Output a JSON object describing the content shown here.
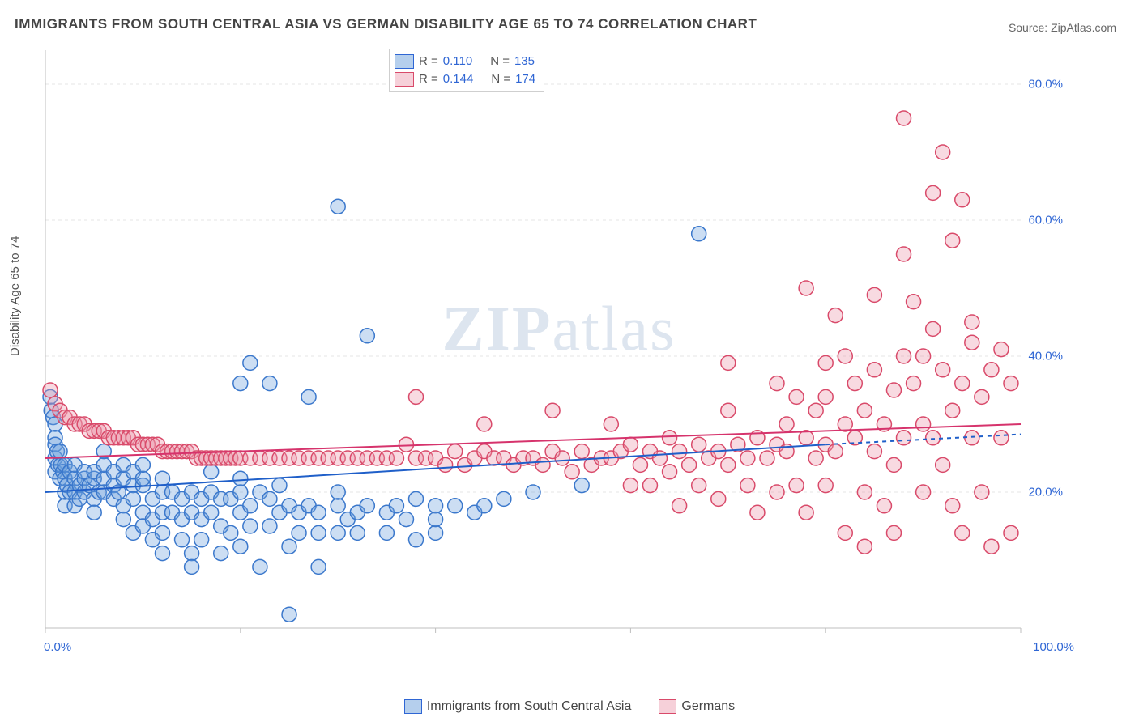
{
  "title": "IMMIGRANTS FROM SOUTH CENTRAL ASIA VS GERMAN DISABILITY AGE 65 TO 74 CORRELATION CHART",
  "source": "Source: ZipAtlas.com",
  "ylabel": "Disability Age 65 to 74",
  "watermark": {
    "bold": "ZIP",
    "rest": "atlas"
  },
  "chart": {
    "type": "scatter-with-trendlines",
    "xlim": [
      0,
      100
    ],
    "ylim": [
      0,
      85
    ],
    "yticks": [
      20,
      40,
      60,
      80
    ],
    "ytick_labels": [
      "20.0%",
      "40.0%",
      "60.0%",
      "80.0%"
    ],
    "x_bounds_labels": [
      "0.0%",
      "100.0%"
    ],
    "grid_color": "#e4e4e4",
    "axis_color": "#bfbfbf",
    "background_color": "#ffffff",
    "marker_radius": 9,
    "marker_stroke_width": 1.5,
    "series": [
      {
        "name": "Immigrants from South Central Asia",
        "short": "blue",
        "fill": "rgba(108,160,220,0.35)",
        "stroke": "#3b78cc",
        "r": "0.110",
        "n": "135",
        "trend": {
          "x1": 0,
          "y1": 20,
          "x2": 80,
          "y2": 27,
          "solid_to_x": 80,
          "dash_to_x": 100,
          "dash_y2": 28.5,
          "color": "#1f5fc9",
          "width": 2
        },
        "points": [
          [
            0.5,
            34
          ],
          [
            0.6,
            32
          ],
          [
            0.8,
            31
          ],
          [
            1,
            30
          ],
          [
            1,
            28
          ],
          [
            1,
            27
          ],
          [
            1,
            25
          ],
          [
            1,
            23
          ],
          [
            1.2,
            26
          ],
          [
            1.3,
            24
          ],
          [
            1.5,
            22
          ],
          [
            1.5,
            26
          ],
          [
            1.6,
            24
          ],
          [
            1.8,
            23
          ],
          [
            2,
            22
          ],
          [
            2,
            24
          ],
          [
            2,
            20
          ],
          [
            2,
            18
          ],
          [
            2.2,
            21
          ],
          [
            2.5,
            20
          ],
          [
            2.5,
            23
          ],
          [
            3,
            22
          ],
          [
            3,
            20
          ],
          [
            3,
            24
          ],
          [
            3,
            18
          ],
          [
            3.5,
            21
          ],
          [
            3.5,
            19
          ],
          [
            4,
            22
          ],
          [
            4,
            20
          ],
          [
            4,
            23
          ],
          [
            4.5,
            21
          ],
          [
            5,
            22
          ],
          [
            5,
            23
          ],
          [
            5,
            19
          ],
          [
            5,
            17
          ],
          [
            5.5,
            20
          ],
          [
            6,
            22
          ],
          [
            6,
            24
          ],
          [
            6,
            20
          ],
          [
            6,
            26
          ],
          [
            7,
            21
          ],
          [
            7,
            19
          ],
          [
            7,
            23
          ],
          [
            7.5,
            20
          ],
          [
            8,
            22
          ],
          [
            8,
            24
          ],
          [
            8,
            18
          ],
          [
            8,
            16
          ],
          [
            9,
            21
          ],
          [
            9,
            23
          ],
          [
            9,
            19
          ],
          [
            9,
            14
          ],
          [
            10,
            21
          ],
          [
            10,
            22
          ],
          [
            10,
            24
          ],
          [
            10,
            17
          ],
          [
            10,
            15
          ],
          [
            11,
            19
          ],
          [
            11,
            16
          ],
          [
            11,
            13
          ],
          [
            12,
            20
          ],
          [
            12,
            22
          ],
          [
            12,
            17
          ],
          [
            12,
            14
          ],
          [
            12,
            11
          ],
          [
            13,
            17
          ],
          [
            13,
            20
          ],
          [
            14,
            19
          ],
          [
            14,
            16
          ],
          [
            14,
            13
          ],
          [
            15,
            20
          ],
          [
            15,
            17
          ],
          [
            15,
            11
          ],
          [
            15,
            9
          ],
          [
            16,
            19
          ],
          [
            16,
            16
          ],
          [
            16,
            13
          ],
          [
            17,
            20
          ],
          [
            17,
            17
          ],
          [
            17,
            23
          ],
          [
            18,
            19
          ],
          [
            18,
            15
          ],
          [
            18,
            11
          ],
          [
            19,
            14
          ],
          [
            19,
            19
          ],
          [
            20,
            20
          ],
          [
            20,
            22
          ],
          [
            20,
            36
          ],
          [
            20,
            17
          ],
          [
            20,
            12
          ],
          [
            21,
            18
          ],
          [
            21,
            39
          ],
          [
            21,
            15
          ],
          [
            22,
            20
          ],
          [
            22,
            9
          ],
          [
            23,
            19
          ],
          [
            23,
            36
          ],
          [
            23,
            15
          ],
          [
            24,
            17
          ],
          [
            24,
            21
          ],
          [
            25,
            18
          ],
          [
            25,
            12
          ],
          [
            25,
            2
          ],
          [
            26,
            17
          ],
          [
            26,
            14
          ],
          [
            27,
            18
          ],
          [
            27,
            34
          ],
          [
            28,
            17
          ],
          [
            28,
            14
          ],
          [
            28,
            9
          ],
          [
            30,
            18
          ],
          [
            30,
            20
          ],
          [
            30,
            14
          ],
          [
            30,
            62
          ],
          [
            31,
            16
          ],
          [
            32,
            17
          ],
          [
            32,
            14
          ],
          [
            33,
            18
          ],
          [
            33,
            43
          ],
          [
            35,
            17
          ],
          [
            35,
            14
          ],
          [
            36,
            18
          ],
          [
            37,
            16
          ],
          [
            38,
            19
          ],
          [
            38,
            13
          ],
          [
            40,
            18
          ],
          [
            40,
            14
          ],
          [
            40,
            16
          ],
          [
            42,
            18
          ],
          [
            44,
            17
          ],
          [
            45,
            18
          ],
          [
            47,
            19
          ],
          [
            50,
            20
          ],
          [
            55,
            21
          ],
          [
            67,
            58
          ]
        ]
      },
      {
        "name": "Germans",
        "short": "pink",
        "fill": "rgba(236,150,170,0.35)",
        "stroke": "#d94a6a",
        "r": "0.144",
        "n": "174",
        "trend": {
          "x1": 0,
          "y1": 25,
          "x2": 100,
          "y2": 30,
          "solid_to_x": 100,
          "color": "#d6336c",
          "width": 2
        },
        "points": [
          [
            0.5,
            35
          ],
          [
            1,
            33
          ],
          [
            1.5,
            32
          ],
          [
            2,
            31
          ],
          [
            2.5,
            31
          ],
          [
            3,
            30
          ],
          [
            3.5,
            30
          ],
          [
            4,
            30
          ],
          [
            4.5,
            29
          ],
          [
            5,
            29
          ],
          [
            5.5,
            29
          ],
          [
            6,
            29
          ],
          [
            6.5,
            28
          ],
          [
            7,
            28
          ],
          [
            7.5,
            28
          ],
          [
            8,
            28
          ],
          [
            8.5,
            28
          ],
          [
            9,
            28
          ],
          [
            9.5,
            27
          ],
          [
            10,
            27
          ],
          [
            10.5,
            27
          ],
          [
            11,
            27
          ],
          [
            11.5,
            27
          ],
          [
            12,
            26
          ],
          [
            12.5,
            26
          ],
          [
            13,
            26
          ],
          [
            13.5,
            26
          ],
          [
            14,
            26
          ],
          [
            14.5,
            26
          ],
          [
            15,
            26
          ],
          [
            15.5,
            25
          ],
          [
            16,
            25
          ],
          [
            16.5,
            25
          ],
          [
            17,
            25
          ],
          [
            17.5,
            25
          ],
          [
            18,
            25
          ],
          [
            18.5,
            25
          ],
          [
            19,
            25
          ],
          [
            19.5,
            25
          ],
          [
            20,
            25
          ],
          [
            21,
            25
          ],
          [
            22,
            25
          ],
          [
            23,
            25
          ],
          [
            24,
            25
          ],
          [
            25,
            25
          ],
          [
            26,
            25
          ],
          [
            27,
            25
          ],
          [
            28,
            25
          ],
          [
            29,
            25
          ],
          [
            30,
            25
          ],
          [
            31,
            25
          ],
          [
            32,
            25
          ],
          [
            33,
            25
          ],
          [
            34,
            25
          ],
          [
            35,
            25
          ],
          [
            36,
            25
          ],
          [
            37,
            27
          ],
          [
            38,
            25
          ],
          [
            39,
            25
          ],
          [
            40,
            25
          ],
          [
            41,
            24
          ],
          [
            42,
            26
          ],
          [
            43,
            24
          ],
          [
            44,
            25
          ],
          [
            45,
            26
          ],
          [
            46,
            25
          ],
          [
            47,
            25
          ],
          [
            48,
            24
          ],
          [
            49,
            25
          ],
          [
            50,
            25
          ],
          [
            51,
            24
          ],
          [
            52,
            26
          ],
          [
            53,
            25
          ],
          [
            54,
            23
          ],
          [
            55,
            26
          ],
          [
            56,
            24
          ],
          [
            57,
            25
          ],
          [
            58,
            25
          ],
          [
            59,
            26
          ],
          [
            60,
            21
          ],
          [
            60,
            27
          ],
          [
            61,
            24
          ],
          [
            62,
            26
          ],
          [
            62,
            21
          ],
          [
            63,
            25
          ],
          [
            64,
            23
          ],
          [
            64,
            28
          ],
          [
            65,
            26
          ],
          [
            65,
            18
          ],
          [
            66,
            24
          ],
          [
            67,
            27
          ],
          [
            67,
            21
          ],
          [
            68,
            25
          ],
          [
            69,
            26
          ],
          [
            69,
            19
          ],
          [
            70,
            24
          ],
          [
            70,
            32
          ],
          [
            71,
            27
          ],
          [
            72,
            25
          ],
          [
            72,
            21
          ],
          [
            73,
            28
          ],
          [
            73,
            17
          ],
          [
            74,
            25
          ],
          [
            75,
            27
          ],
          [
            75,
            20
          ],
          [
            76,
            30
          ],
          [
            76,
            26
          ],
          [
            77,
            34
          ],
          [
            77,
            21
          ],
          [
            78,
            28
          ],
          [
            78,
            17
          ],
          [
            78,
            50
          ],
          [
            79,
            25
          ],
          [
            79,
            32
          ],
          [
            80,
            27
          ],
          [
            80,
            21
          ],
          [
            80,
            39
          ],
          [
            81,
            46
          ],
          [
            81,
            26
          ],
          [
            82,
            30
          ],
          [
            82,
            14
          ],
          [
            83,
            36
          ],
          [
            83,
            28
          ],
          [
            84,
            20
          ],
          [
            84,
            32
          ],
          [
            85,
            26
          ],
          [
            85,
            49
          ],
          [
            86,
            30
          ],
          [
            86,
            18
          ],
          [
            87,
            35
          ],
          [
            87,
            24
          ],
          [
            87,
            14
          ],
          [
            88,
            40
          ],
          [
            88,
            28
          ],
          [
            88,
            75
          ],
          [
            89,
            36
          ],
          [
            89,
            48
          ],
          [
            90,
            30
          ],
          [
            90,
            20
          ],
          [
            91,
            44
          ],
          [
            91,
            64
          ],
          [
            91,
            28
          ],
          [
            92,
            38
          ],
          [
            92,
            70
          ],
          [
            92,
            24
          ],
          [
            93,
            32
          ],
          [
            93,
            18
          ],
          [
            93,
            57
          ],
          [
            94,
            36
          ],
          [
            94,
            14
          ],
          [
            94,
            63
          ],
          [
            95,
            28
          ],
          [
            95,
            42
          ],
          [
            96,
            34
          ],
          [
            96,
            20
          ],
          [
            97,
            38
          ],
          [
            97,
            12
          ],
          [
            98,
            41
          ],
          [
            98,
            28
          ],
          [
            99,
            36
          ],
          [
            99,
            14
          ],
          [
            38,
            34
          ],
          [
            45,
            30
          ],
          [
            52,
            32
          ],
          [
            58,
            30
          ],
          [
            70,
            39
          ],
          [
            75,
            36
          ],
          [
            80,
            34
          ],
          [
            85,
            38
          ],
          [
            90,
            40
          ],
          [
            95,
            45
          ],
          [
            82,
            40
          ],
          [
            88,
            55
          ],
          [
            84,
            12
          ]
        ]
      }
    ]
  },
  "legend_box": {
    "rows": [
      {
        "swatch": "blue",
        "r_label": "R =",
        "r_val": "0.110",
        "n_label": "N =",
        "n_val": "135"
      },
      {
        "swatch": "pink",
        "r_label": "R =",
        "r_val": "0.144",
        "n_label": "N =",
        "n_val": "174"
      }
    ]
  },
  "bottom_legend": [
    {
      "swatch": "blue",
      "label": "Immigrants from South Central Asia"
    },
    {
      "swatch": "pink",
      "label": "Germans"
    }
  ]
}
